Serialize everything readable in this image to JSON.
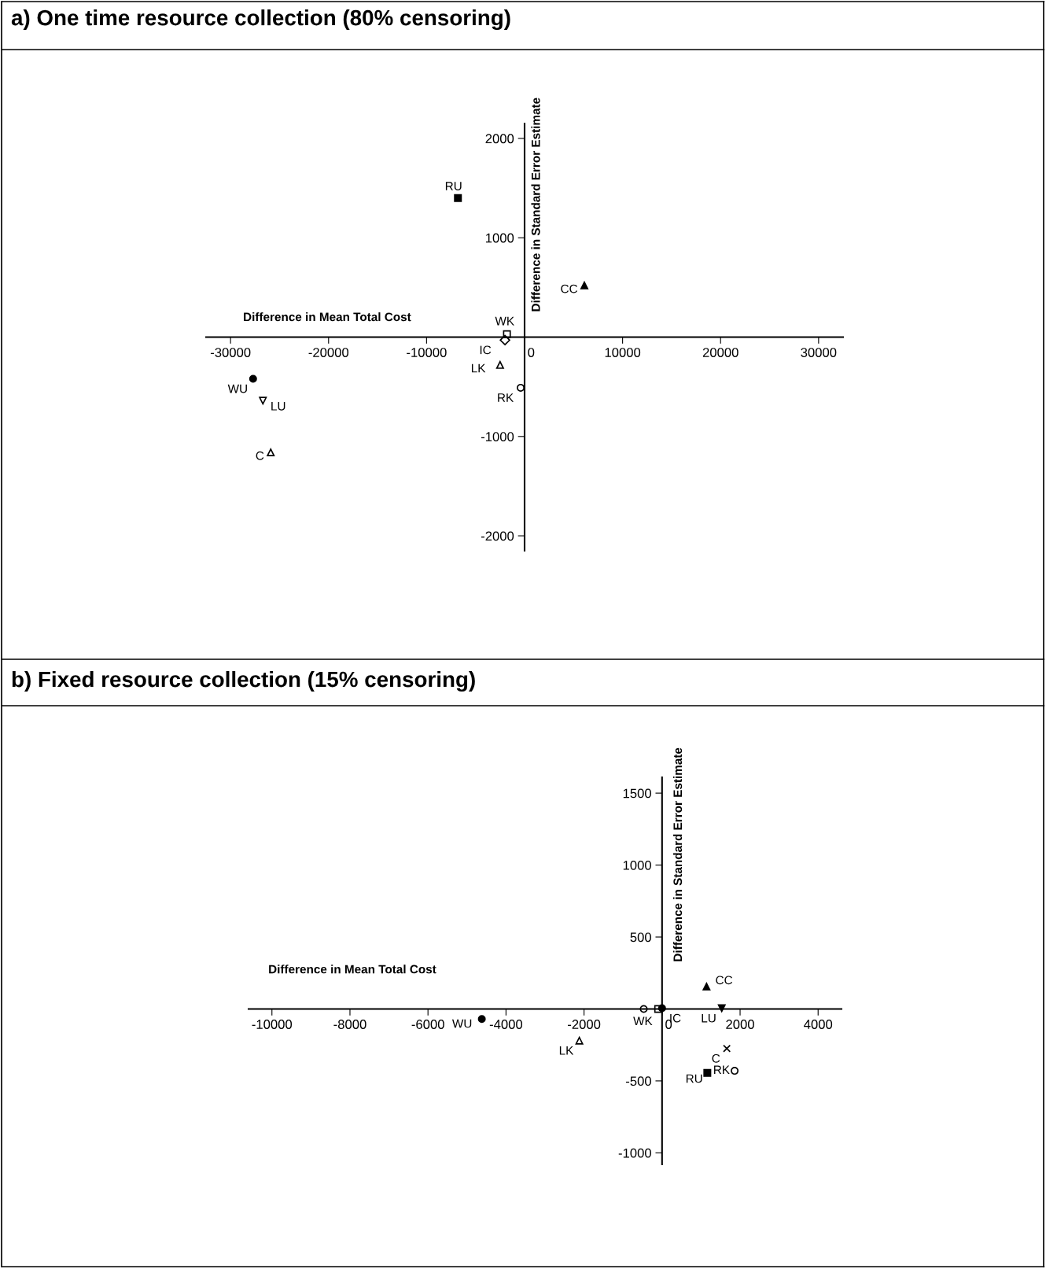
{
  "chart_data": [
    {
      "type": "scatter",
      "title": "a) One time resource collection (80% censoring)",
      "xlabel": "Difference in Mean Total Cost",
      "ylabel": "Difference in Standard Error Estimate",
      "xlim": [
        -32500,
        32500
      ],
      "ylim": [
        -2150,
        2150
      ],
      "xticks": [
        -30000,
        -20000,
        -10000,
        0,
        10000,
        20000,
        30000
      ],
      "yticks": [
        -2000,
        -1000,
        1000,
        2000
      ],
      "grid": false,
      "legend": false,
      "series": [
        {
          "name": "RU",
          "color": "#000000",
          "marker": "square",
          "x": [
            -6800
          ],
          "values": [
            1400
          ]
        },
        {
          "name": "CC",
          "color": "#000000",
          "marker": "triangle",
          "x": [
            6100
          ],
          "values": [
            520
          ]
        },
        {
          "name": "WK",
          "color": "#000000",
          "marker": "square-open",
          "x": [
            -1800
          ],
          "values": [
            30
          ]
        },
        {
          "name": "IC",
          "color": "#000000",
          "marker": "diamond-open",
          "x": [
            -2000
          ],
          "values": [
            -30
          ]
        },
        {
          "name": "LK",
          "color": "#000000",
          "marker": "triangle-open",
          "x": [
            -2500
          ],
          "values": [
            -280
          ]
        },
        {
          "name": "RK",
          "color": "#000000",
          "marker": "circle-open",
          "x": [
            -400
          ],
          "values": [
            -510
          ]
        },
        {
          "name": "WU",
          "color": "#000000",
          "marker": "circle",
          "x": [
            -27700
          ],
          "values": [
            -420
          ]
        },
        {
          "name": "LU",
          "color": "#000000",
          "marker": "triangle-down-open",
          "x": [
            -26700
          ],
          "values": [
            -640
          ]
        },
        {
          "name": "C",
          "color": "#000000",
          "marker": "triangle-open",
          "x": [
            -25900
          ],
          "values": [
            -1160
          ]
        }
      ]
    },
    {
      "type": "scatter",
      "title": "b) Fixed resource collection (15% censoring)",
      "xlabel": "Difference in Mean Total Cost",
      "ylabel": "Difference in Standard Error Estimate",
      "xlim": [
        -10600,
        4600
      ],
      "ylim": [
        -1080,
        1610
      ],
      "xticks": [
        -10000,
        -8000,
        -6000,
        -4000,
        -2000,
        0,
        2000,
        4000
      ],
      "yticks": [
        -1000,
        -500,
        500,
        1000,
        1500
      ],
      "grid": false,
      "legend": false,
      "series": [
        {
          "name": "CC",
          "color": "#000000",
          "marker": "triangle",
          "x": [
            1140
          ],
          "values": [
            155
          ]
        },
        {
          "name": "WU",
          "color": "#000000",
          "marker": "circle",
          "x": [
            -4620
          ],
          "values": [
            -70
          ]
        },
        {
          "name": "LK",
          "color": "#000000",
          "marker": "triangle-open",
          "x": [
            -2120
          ],
          "values": [
            -220
          ]
        },
        {
          "color": "#000000",
          "marker": "circle-open",
          "x": [
            -470
          ],
          "values": [
            0
          ]
        },
        {
          "name": "WK",
          "color": "#000000",
          "marker": "square-open",
          "x": [
            -100
          ],
          "values": [
            0
          ]
        },
        {
          "name": "IC",
          "color": "#000000",
          "marker": "circle",
          "x": [
            0
          ],
          "values": [
            5
          ]
        },
        {
          "name": "LU",
          "color": "#000000",
          "marker": "triangle-down",
          "x": [
            1530
          ],
          "values": [
            5
          ]
        },
        {
          "name": "C",
          "color": "#000000",
          "marker": "cross",
          "x": [
            1660
          ],
          "values": [
            -275
          ]
        },
        {
          "name": "RU",
          "color": "#000000",
          "marker": "square",
          "x": [
            1160
          ],
          "values": [
            -445
          ]
        },
        {
          "name": "RK",
          "color": "#000000",
          "marker": "circle-open",
          "x": [
            1860
          ],
          "values": [
            -430
          ]
        }
      ]
    }
  ]
}
